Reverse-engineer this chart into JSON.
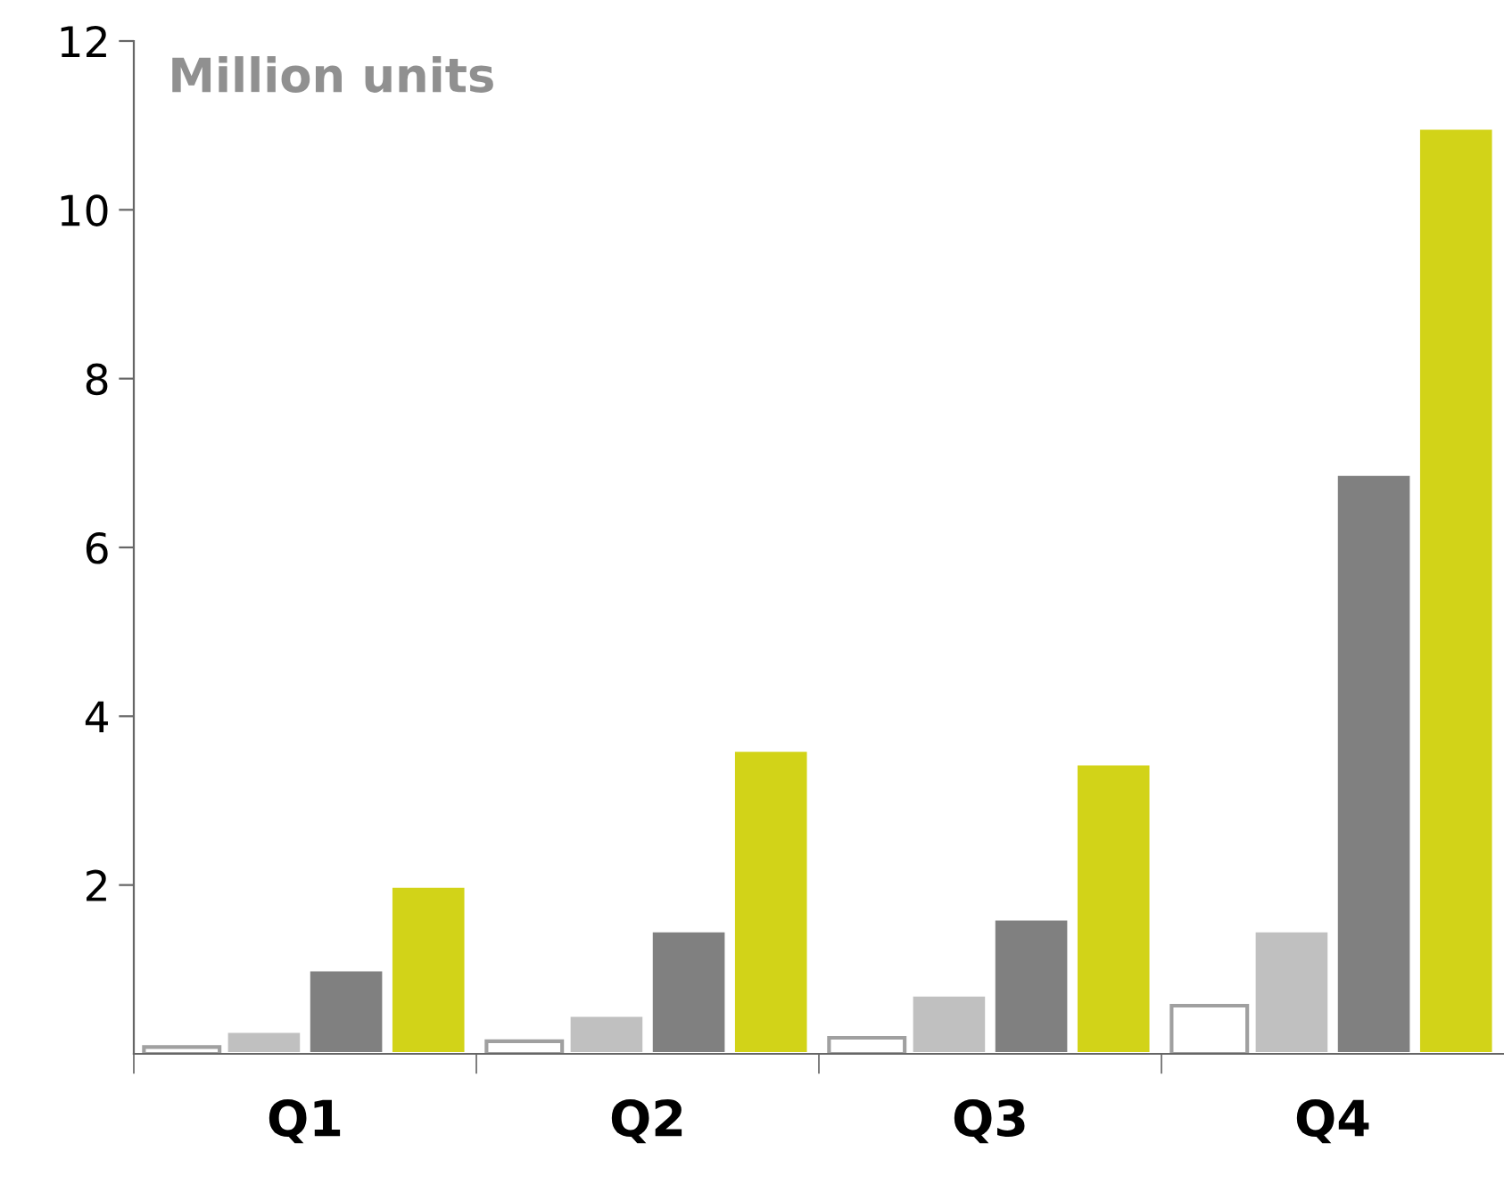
{
  "chart_data": {
    "type": "bar",
    "ylabel": "Million units",
    "categories": [
      "Q1",
      "Q2",
      "Q3",
      "Q4"
    ],
    "series": [
      {
        "color": "#ffffff",
        "values": [
          0.08,
          0.15,
          0.19,
          0.57
        ]
      },
      {
        "color": "#c0c0c0",
        "values": [
          0.27,
          0.46,
          0.7,
          1.46
        ]
      },
      {
        "color": "#808080",
        "values": [
          1.0,
          1.46,
          1.6,
          6.87
        ]
      },
      {
        "color": "#d2d318",
        "values": [
          1.99,
          3.6,
          3.44,
          10.97
        ]
      }
    ],
    "ylim": [
      0,
      12
    ],
    "yticks": [
      2,
      4,
      6,
      8,
      10,
      12
    ],
    "grid": false,
    "legend": false
  }
}
